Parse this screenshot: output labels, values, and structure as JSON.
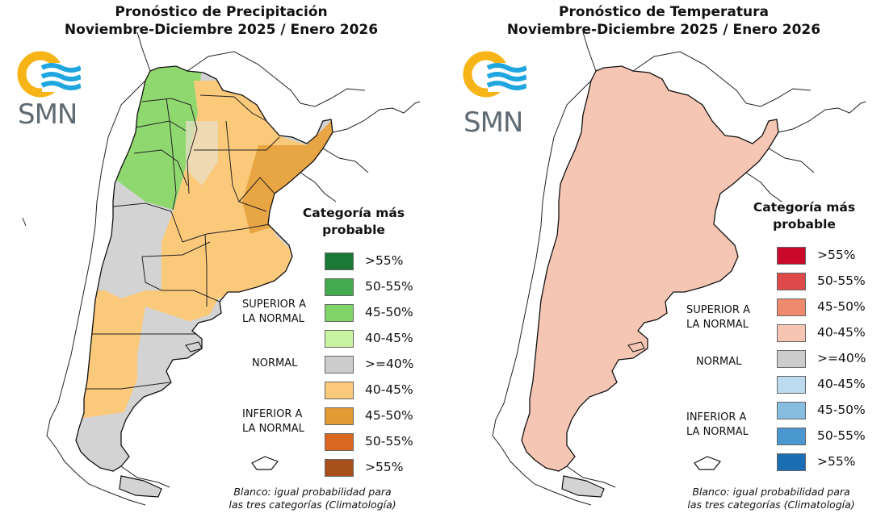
{
  "precipitation": {
    "title_line1": "Pronóstico de Precipitación",
    "title_line2": "Noviembre-Diciembre 2025 / Enero 2026",
    "logo_text": "SMN",
    "legend_title_line1": "Categoría más",
    "legend_title_line2": "probable",
    "legend": [
      {
        "label": ">55%",
        "color": "#1a7a35"
      },
      {
        "label": "50-55%",
        "color": "#44aa4f"
      },
      {
        "label": "45-50%",
        "color": "#80d468"
      },
      {
        "label": "40-45%",
        "color": "#c8f3a0"
      },
      {
        "label": ">=40%",
        "color": "#cccccc"
      },
      {
        "label": "40-45%",
        "color": "#fbc97a"
      },
      {
        "label": "45-50%",
        "color": "#e29a34"
      },
      {
        "label": "50-55%",
        "color": "#d9671f"
      },
      {
        "label": ">55%",
        "color": "#a8501a"
      }
    ],
    "category_above_line1": "SUPERIOR A",
    "category_above_line2": "LA NORMAL",
    "category_normal": "NORMAL",
    "category_below_line1": "INFERIOR A",
    "category_below_line2": "LA NORMAL",
    "note_line1": "Blanco: igual probabilidad para",
    "note_line2": "las tres categorías (Climatología)"
  },
  "temperature": {
    "title_line1": "Pronóstico de Temperatura",
    "title_line2": "Noviembre-Diciembre 2025 / Enero 2026",
    "logo_text": "SMN",
    "legend_title_line1": "Categoría más",
    "legend_title_line2": "probable",
    "legend": [
      {
        "label": ">55%",
        "color": "#c9082a"
      },
      {
        "label": "50-55%",
        "color": "#de4a4a"
      },
      {
        "label": "45-50%",
        "color": "#ee8a6e"
      },
      {
        "label": "40-45%",
        "color": "#f7c6b2"
      },
      {
        "label": ">=40%",
        "color": "#cccccc"
      },
      {
        "label": "40-45%",
        "color": "#bcdbee"
      },
      {
        "label": "45-50%",
        "color": "#86bde0"
      },
      {
        "label": "50-55%",
        "color": "#4a98cf"
      },
      {
        "label": ">55%",
        "color": "#1a6fb4"
      }
    ],
    "category_above_line1": "SUPERIOR A",
    "category_above_line2": "LA NORMAL",
    "category_normal": "NORMAL",
    "category_below_line1": "INFERIOR A",
    "category_below_line2": "LA NORMAL",
    "note_line1": "Blanco: igual probabilidad para",
    "note_line2": "las tres categorías (Climatología)"
  },
  "map_colors": {
    "green_light": "#a6e07e",
    "green_mid": "#8fd86f",
    "orange_light": "#fbc97a",
    "orange_mid": "#e8a544",
    "grey": "#d3d3d3",
    "red_light": "#f5c6b3",
    "red_mid": "#ef8e73",
    "red_strong": "#e4655a",
    "logo_yellow": "#f6b417",
    "logo_blue": "#1fa6df"
  }
}
